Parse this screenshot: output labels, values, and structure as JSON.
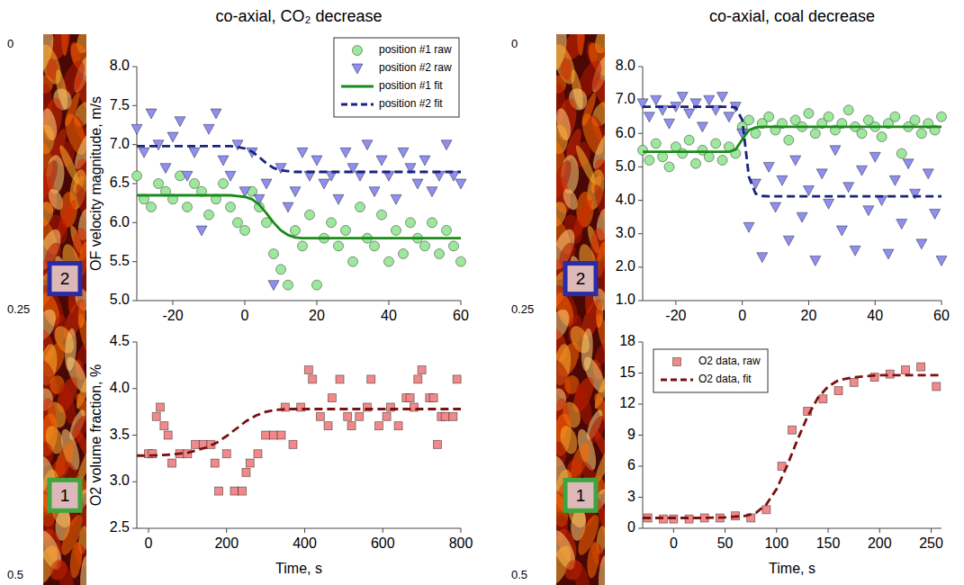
{
  "chart_data": [
    {
      "type": "image",
      "ylim": [
        0,
        0.5
      ],
      "yticks": [
        0,
        0.25,
        0.5
      ],
      "series": [
        {
          "name": "2",
          "color": "#2b2ba6",
          "values": [
            0.22
          ]
        },
        {
          "name": "1",
          "color": "#3fa53f",
          "values": [
            0.424
          ]
        }
      ]
    },
    {
      "type": "scatter",
      "title": "co-axial, CO₂ decrease",
      "ylabel": "OF velocity magnitude, m/s",
      "xlim": [
        -30,
        60
      ],
      "xticks": [
        -20,
        0,
        20,
        40,
        60
      ],
      "ylim": [
        5,
        8
      ],
      "yticks": [
        {
          "value": 5,
          "label": "5.0"
        },
        {
          "value": 5.5,
          "label": "5.5"
        },
        {
          "value": 6,
          "label": "6.0"
        },
        {
          "value": 6.5,
          "label": "6.5"
        },
        {
          "value": 7,
          "label": "7.0"
        },
        {
          "value": 7.5,
          "label": "7.5"
        },
        {
          "value": 8,
          "label": "8.0"
        }
      ],
      "legend": "upper right",
      "x": [
        -30,
        -28,
        -26,
        -24,
        -22,
        -20,
        -18,
        -16,
        -14,
        -12,
        -10,
        -8,
        -6,
        -4,
        -2,
        0,
        2,
        4,
        6,
        8,
        10,
        12,
        14,
        16,
        18,
        20,
        22,
        24,
        26,
        28,
        30,
        32,
        34,
        36,
        38,
        40,
        42,
        44,
        46,
        48,
        50,
        52,
        54,
        56,
        58,
        60
      ],
      "series": [
        {
          "name": "position #1 raw",
          "type": "scatter",
          "marker": "circle",
          "color": "#9ee89e",
          "values": [
            6.6,
            6.3,
            6.2,
            6.5,
            6.4,
            6.3,
            6.6,
            6.2,
            6.5,
            6.4,
            6.1,
            6.3,
            6.5,
            6.2,
            6.0,
            5.9,
            6.4,
            6.2,
            6.0,
            5.6,
            5.4,
            5.2,
            5.9,
            5.7,
            6.1,
            5.2,
            5.8,
            6.0,
            5.7,
            5.9,
            5.5,
            6.2,
            5.8,
            5.7,
            6.1,
            5.5,
            5.9,
            5.6,
            6.0,
            5.8,
            5.7,
            6.0,
            5.6,
            5.9,
            5.7,
            5.5
          ]
        },
        {
          "name": "position #2 raw",
          "type": "scatter",
          "marker": "triangle-down",
          "color": "#8f8ff0",
          "values": [
            7.2,
            6.9,
            7.4,
            7.0,
            6.7,
            7.1,
            7.3,
            6.6,
            6.9,
            5.9,
            7.2,
            7.4,
            6.8,
            6.6,
            7.0,
            6.4,
            6.9,
            6.3,
            6.5,
            5.2,
            6.7,
            6.2,
            6.4,
            6.9,
            6.6,
            6.8,
            6.5,
            6.6,
            6.3,
            6.9,
            6.7,
            6.6,
            7.0,
            6.4,
            6.8,
            6.6,
            6.3,
            6.9,
            6.7,
            6.5,
            6.8,
            6.4,
            6.6,
            7.0,
            6.6,
            6.5
          ]
        },
        {
          "name": "position #1 fit",
          "type": "line",
          "line_style": "solid",
          "color": "#1b8a1b",
          "values": [
            6.35,
            6.35,
            6.35,
            6.35,
            6.35,
            6.35,
            6.35,
            6.35,
            6.35,
            6.35,
            6.35,
            6.35,
            6.35,
            6.35,
            6.34,
            6.33,
            6.3,
            6.23,
            6.12,
            6.0,
            5.9,
            5.84,
            5.81,
            5.8,
            5.8,
            5.8,
            5.8,
            5.8,
            5.8,
            5.8,
            5.8,
            5.8,
            5.8,
            5.8,
            5.8,
            5.8,
            5.8,
            5.8,
            5.8,
            5.8,
            5.8,
            5.8,
            5.8,
            5.8,
            5.8,
            5.8
          ]
        },
        {
          "name": "position #2 fit",
          "type": "line",
          "line_style": "dashed",
          "color": "#1a237e",
          "values": [
            6.98,
            6.98,
            6.98,
            6.98,
            6.98,
            6.98,
            6.98,
            6.98,
            6.98,
            6.98,
            6.98,
            6.98,
            6.98,
            6.98,
            6.97,
            6.95,
            6.91,
            6.84,
            6.76,
            6.7,
            6.67,
            6.66,
            6.65,
            6.65,
            6.65,
            6.65,
            6.65,
            6.65,
            6.65,
            6.65,
            6.65,
            6.65,
            6.65,
            6.65,
            6.65,
            6.65,
            6.65,
            6.65,
            6.65,
            6.65,
            6.65,
            6.65,
            6.65,
            6.65,
            6.65,
            6.65
          ]
        }
      ]
    },
    {
      "type": "scatter",
      "xlabel": "Time, s",
      "ylabel": "O2 volume fraction, %",
      "xlim": [
        -30,
        800
      ],
      "xticks": [
        0,
        200,
        400,
        600,
        800
      ],
      "ylim": [
        2.5,
        4.5
      ],
      "yticks": [
        {
          "value": 2.5,
          "label": "2.5"
        },
        {
          "value": 3,
          "label": "3.0"
        },
        {
          "value": 3.5,
          "label": "3.5"
        },
        {
          "value": 4,
          "label": "4.0"
        },
        {
          "value": 4.5,
          "label": "4.5"
        }
      ],
      "series": [
        {
          "name": "O2 data, raw",
          "type": "scatter",
          "marker": "square",
          "color": "#f08a8a",
          "x": [
            0,
            10,
            20,
            30,
            40,
            50,
            60,
            80,
            100,
            120,
            140,
            160,
            170,
            180,
            200,
            220,
            240,
            250,
            260,
            280,
            300,
            320,
            340,
            350,
            370,
            390,
            410,
            420,
            440,
            460,
            470,
            490,
            510,
            520,
            540,
            560,
            570,
            590,
            610,
            620,
            640,
            660,
            670,
            680,
            690,
            700,
            720,
            730,
            740,
            750,
            760,
            780,
            790
          ],
          "values": [
            3.3,
            3.3,
            3.7,
            3.8,
            3.6,
            3.5,
            3.2,
            3.3,
            3.3,
            3.4,
            3.4,
            3.4,
            3.2,
            2.9,
            3.3,
            2.9,
            2.9,
            3.1,
            3.2,
            3.3,
            3.5,
            3.5,
            3.5,
            3.8,
            3.4,
            3.8,
            4.2,
            4.1,
            3.7,
            3.6,
            3.9,
            4.1,
            3.7,
            3.6,
            3.7,
            3.8,
            4.1,
            3.6,
            3.7,
            3.8,
            3.6,
            3.9,
            3.9,
            3.8,
            4.1,
            4.2,
            3.9,
            3.9,
            3.4,
            3.7,
            3.7,
            3.7,
            4.1
          ]
        },
        {
          "name": "O2 data, fit",
          "type": "line",
          "line_style": "dashed",
          "color": "#7a1010",
          "x": [
            -30,
            0,
            50,
            100,
            150,
            175,
            200,
            225,
            250,
            275,
            300,
            325,
            350,
            400,
            500,
            600,
            700,
            800
          ],
          "values": [
            3.28,
            3.28,
            3.29,
            3.31,
            3.37,
            3.42,
            3.49,
            3.57,
            3.65,
            3.71,
            3.75,
            3.77,
            3.78,
            3.78,
            3.78,
            3.78,
            3.78,
            3.78
          ]
        }
      ]
    },
    {
      "type": "image",
      "ylim": [
        0,
        0.5
      ],
      "yticks": [
        0,
        0.25,
        0.5
      ],
      "series": [
        {
          "name": "2",
          "color": "#2b2ba6",
          "values": [
            0.22
          ]
        },
        {
          "name": "1",
          "color": "#3fa53f",
          "values": [
            0.424
          ]
        }
      ]
    },
    {
      "type": "scatter",
      "title": "co-axial, coal decrease",
      "xlim": [
        -30,
        60
      ],
      "xticks": [
        -20,
        0,
        20,
        40,
        60
      ],
      "ylim": [
        1,
        8
      ],
      "yticks": [
        {
          "value": 1,
          "label": "1.0"
        },
        {
          "value": 2,
          "label": "2.0"
        },
        {
          "value": 3,
          "label": "3.0"
        },
        {
          "value": 4,
          "label": "4.0"
        },
        {
          "value": 5,
          "label": "5.0"
        },
        {
          "value": 6,
          "label": "6.0"
        },
        {
          "value": 7,
          "label": "7.0"
        },
        {
          "value": 8,
          "label": "8.0"
        }
      ],
      "x": [
        -30,
        -28,
        -26,
        -24,
        -22,
        -20,
        -18,
        -16,
        -14,
        -12,
        -10,
        -8,
        -6,
        -4,
        -2,
        0,
        2,
        4,
        6,
        8,
        10,
        12,
        14,
        16,
        18,
        20,
        22,
        24,
        26,
        28,
        30,
        32,
        34,
        36,
        38,
        40,
        42,
        44,
        46,
        48,
        50,
        52,
        54,
        56,
        58,
        60
      ],
      "series": [
        {
          "name": "position #1 raw",
          "type": "scatter",
          "marker": "circle",
          "color": "#9ee89e",
          "values": [
            5.5,
            5.2,
            5.7,
            5.3,
            5.0,
            5.6,
            5.4,
            5.8,
            5.1,
            5.5,
            5.3,
            5.7,
            5.2,
            5.6,
            5.4,
            6.2,
            6.4,
            6.0,
            6.3,
            6.5,
            6.1,
            6.3,
            5.8,
            6.4,
            6.2,
            6.6,
            6.0,
            6.3,
            6.5,
            6.1,
            6.3,
            6.7,
            6.2,
            6.0,
            6.4,
            6.2,
            5.9,
            6.3,
            6.5,
            5.4,
            6.2,
            6.4,
            6.0,
            6.3,
            6.1,
            6.5
          ]
        },
        {
          "name": "position #2 raw",
          "type": "scatter",
          "marker": "triangle-down",
          "color": "#8f8ff0",
          "values": [
            6.9,
            6.5,
            7.0,
            6.7,
            6.3,
            6.8,
            7.1,
            6.6,
            6.9,
            6.2,
            7.0,
            6.7,
            7.1,
            6.5,
            6.8,
            6.0,
            3.2,
            4.5,
            2.3,
            5.0,
            3.8,
            4.6,
            2.8,
            5.2,
            3.5,
            4.3,
            2.2,
            4.8,
            3.9,
            5.5,
            3.1,
            4.4,
            2.5,
            4.9,
            3.7,
            5.3,
            4.0,
            2.4,
            4.6,
            3.3,
            5.1,
            4.2,
            2.7,
            4.8,
            3.6,
            2.2
          ]
        },
        {
          "name": "position #1 fit",
          "type": "line",
          "line_style": "solid",
          "color": "#1b8a1b",
          "values": [
            5.45,
            5.45,
            5.45,
            5.45,
            5.45,
            5.45,
            5.45,
            5.45,
            5.45,
            5.45,
            5.45,
            5.45,
            5.45,
            5.45,
            5.52,
            5.82,
            6.1,
            6.18,
            6.2,
            6.2,
            6.2,
            6.2,
            6.2,
            6.2,
            6.2,
            6.2,
            6.2,
            6.2,
            6.2,
            6.2,
            6.2,
            6.2,
            6.2,
            6.2,
            6.2,
            6.2,
            6.2,
            6.2,
            6.2,
            6.2,
            6.2,
            6.2,
            6.2,
            6.2,
            6.2,
            6.2
          ]
        },
        {
          "name": "position #2 fit",
          "type": "line",
          "line_style": "dashed",
          "color": "#1a237e",
          "values": [
            6.8,
            6.8,
            6.8,
            6.8,
            6.8,
            6.8,
            6.8,
            6.8,
            6.8,
            6.8,
            6.8,
            6.8,
            6.8,
            6.8,
            6.78,
            6.4,
            4.7,
            4.2,
            4.13,
            4.12,
            4.12,
            4.12,
            4.12,
            4.12,
            4.12,
            4.12,
            4.12,
            4.12,
            4.12,
            4.12,
            4.12,
            4.12,
            4.12,
            4.12,
            4.12,
            4.12,
            4.12,
            4.12,
            4.12,
            4.12,
            4.12,
            4.12,
            4.12,
            4.12,
            4.12,
            4.12
          ]
        }
      ]
    },
    {
      "type": "scatter",
      "xlabel": "Time, s",
      "xlim": [
        -30,
        260
      ],
      "xticks": [
        0,
        50,
        100,
        150,
        200,
        250
      ],
      "ylim": [
        0,
        18
      ],
      "yticks": [
        0,
        3,
        6,
        9,
        12,
        15,
        18
      ],
      "legend": "upper left",
      "series": [
        {
          "name": "O2 data, raw",
          "type": "scatter",
          "marker": "square",
          "color": "#f08a8a",
          "x": [
            -25,
            -10,
            0,
            15,
            30,
            45,
            60,
            75,
            90,
            105,
            115,
            130,
            145,
            160,
            175,
            195,
            210,
            225,
            240,
            255
          ],
          "values": [
            1.0,
            0.9,
            0.9,
            0.9,
            1.0,
            1.0,
            1.2,
            1.0,
            1.8,
            6.0,
            9.5,
            11.3,
            12.5,
            13.3,
            14.1,
            14.6,
            14.9,
            15.3,
            15.6,
            13.7
          ]
        },
        {
          "name": "O2 data, fit",
          "type": "line",
          "line_style": "dashed",
          "color": "#7a1010",
          "x": [
            -30,
            0,
            25,
            50,
            70,
            80,
            90,
            100,
            110,
            120,
            130,
            140,
            150,
            160,
            175,
            200,
            230,
            260
          ],
          "values": [
            1.0,
            1.0,
            1.0,
            1.05,
            1.2,
            1.5,
            2.3,
            3.8,
            6.0,
            8.5,
            10.8,
            12.6,
            13.7,
            14.3,
            14.6,
            14.8,
            14.8,
            14.8
          ]
        }
      ]
    }
  ]
}
